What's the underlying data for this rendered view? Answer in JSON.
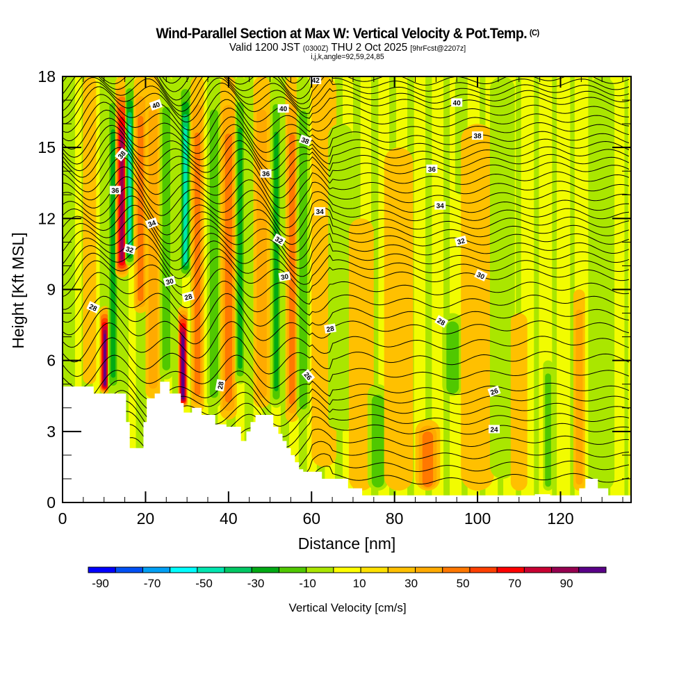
{
  "header": {
    "title": "Wind-Parallel Section at Max W: Vertical Velocity & Pot.Temp.",
    "copyright": "(C)",
    "valid_prefix": "Valid 1200 JST",
    "valid_utc": "(0300Z)",
    "valid_date": "THU 2 Oct 2025",
    "forecast": "[9hrFcst@2207z]",
    "indices": "i,j,k,angle=92,59,24,85"
  },
  "chart_data": {
    "type": "heatmap",
    "title": "Wind-Parallel Section at Max W: Vertical Velocity & Pot.Temp.",
    "xlabel": "Distance [nm]",
    "ylabel": "Height [Kft MSL]",
    "xlim": [
      0,
      137
    ],
    "ylim": [
      0,
      18
    ],
    "x_ticks": [
      "0",
      "20",
      "40",
      "60",
      "80",
      "100",
      "120"
    ],
    "x_tick_values": [
      0,
      20,
      40,
      60,
      80,
      100,
      120
    ],
    "x_minor_step": 5,
    "y_ticks": [
      "0",
      "3",
      "6",
      "9",
      "12",
      "15",
      "18"
    ],
    "y_tick_values": [
      0,
      3,
      6,
      9,
      12,
      15,
      18
    ],
    "y_minor_step": 1,
    "colorbar": {
      "label": "Vertical Velocity [cm/s]",
      "tick_labels": [
        "-90",
        "-70",
        "-50",
        "-30",
        "-10",
        "10",
        "30",
        "50",
        "70",
        "90"
      ],
      "bounds": [
        -100,
        100
      ],
      "step": 10,
      "colors": [
        "#0000ff",
        "#0050f5",
        "#00a0f5",
        "#00ffff",
        "#00e6b0",
        "#00c864",
        "#00aa14",
        "#50c800",
        "#aae600",
        "#ffff00",
        "#ffe100",
        "#ffc000",
        "#ffaa00",
        "#ff7800",
        "#ff4000",
        "#ff0000",
        "#c80032",
        "#960050",
        "#5a0088"
      ],
      "neutral_low": "#aae600",
      "neutral_high": "#ffff00"
    },
    "w_features": [
      {
        "x": 6.5,
        "w": 1.6,
        "ytop": 18,
        "ybot": 5,
        "value": 15
      },
      {
        "x": 10.2,
        "w": 1.3,
        "ytop": 8.3,
        "ybot": 4.6,
        "value": 88
      },
      {
        "x": 12.2,
        "w": 1.3,
        "ytop": 18,
        "ybot": 4.6,
        "value": -30
      },
      {
        "x": 14.3,
        "w": 1.6,
        "ytop": 18,
        "ybot": 9.5,
        "value": 72
      },
      {
        "x": 16.2,
        "w": 1.1,
        "ytop": 18,
        "ybot": 10,
        "value": -55
      },
      {
        "x": 18.8,
        "w": 1.6,
        "ytop": 18,
        "ybot": 8,
        "value": 35
      },
      {
        "x": 21.8,
        "w": 1.8,
        "ytop": 18,
        "ybot": 4.4,
        "value": 25
      },
      {
        "x": 25.0,
        "w": 1.6,
        "ytop": 18,
        "ybot": 5.2,
        "value": -25
      },
      {
        "x": 29.0,
        "w": 1.2,
        "ytop": 8.3,
        "ybot": 4.0,
        "value": 90
      },
      {
        "x": 29.6,
        "w": 1.3,
        "ytop": 18,
        "ybot": 9.5,
        "value": -55
      },
      {
        "x": 32.5,
        "w": 1.6,
        "ytop": 18,
        "ybot": 3.8,
        "value": 30
      },
      {
        "x": 36.5,
        "w": 1.7,
        "ytop": 18,
        "ybot": 4.0,
        "value": -25
      },
      {
        "x": 40.0,
        "w": 2.0,
        "ytop": 18,
        "ybot": 3.5,
        "value": 35
      },
      {
        "x": 42.8,
        "w": 1.2,
        "ytop": 18,
        "ybot": 5.0,
        "value": -30
      },
      {
        "x": 48.0,
        "w": 2.0,
        "ytop": 18,
        "ybot": 4.0,
        "value": 25
      },
      {
        "x": 51.5,
        "w": 1.2,
        "ytop": 18,
        "ybot": 4.0,
        "value": -30
      },
      {
        "x": 55.3,
        "w": 1.6,
        "ytop": 18,
        "ybot": 3.4,
        "value": 35
      },
      {
        "x": 58.0,
        "w": 1.6,
        "ytop": 18,
        "ybot": 3.5,
        "value": -25
      },
      {
        "x": 63.0,
        "w": 3.0,
        "ytop": 18,
        "ybot": 1.5,
        "value": 15
      },
      {
        "x": 67.0,
        "w": 3.0,
        "ytop": 16,
        "ybot": 3.0,
        "value": -12
      },
      {
        "x": 72.0,
        "w": 3.0,
        "ytop": 12,
        "ybot": 0.5,
        "value": 12
      },
      {
        "x": 76.0,
        "w": 2.5,
        "ytop": 5,
        "ybot": 0.5,
        "value": -22
      },
      {
        "x": 81.0,
        "w": 3.5,
        "ytop": 15,
        "ybot": 0.5,
        "value": 14
      },
      {
        "x": 88.0,
        "w": 3.0,
        "ytop": 3.5,
        "ybot": 0.5,
        "value": 35
      },
      {
        "x": 94.0,
        "w": 2.5,
        "ytop": 8,
        "ybot": 4.5,
        "value": -25
      },
      {
        "x": 96.0,
        "w": 1.4,
        "ytop": 18,
        "ybot": 13,
        "value": -15
      },
      {
        "x": 100.0,
        "w": 4.0,
        "ytop": 16,
        "ybot": 0.5,
        "value": 12
      },
      {
        "x": 106.0,
        "w": 3.0,
        "ytop": 18,
        "ybot": 1,
        "value": -10
      },
      {
        "x": 110.0,
        "w": 2.0,
        "ytop": 8,
        "ybot": 0.5,
        "value": 14
      },
      {
        "x": 117.0,
        "w": 1.2,
        "ytop": 6,
        "ybot": 0.5,
        "value": -22
      },
      {
        "x": 124.5,
        "w": 1.4,
        "ytop": 9,
        "ybot": 0.5,
        "value": 20
      },
      {
        "x": 130.0,
        "w": 3.0,
        "ytop": 18,
        "ybot": 0.5,
        "value": -12
      }
    ],
    "terrain": [
      [
        0,
        4.9
      ],
      [
        7.5,
        4.9
      ],
      [
        7.5,
        4.6
      ],
      [
        15.3,
        4.6
      ],
      [
        15.3,
        3.4
      ],
      [
        16.2,
        3.4
      ],
      [
        16.2,
        2.3
      ],
      [
        19.5,
        2.3
      ],
      [
        19.5,
        3.4
      ],
      [
        20.3,
        3.4
      ],
      [
        20.3,
        4.4
      ],
      [
        22.2,
        4.4
      ],
      [
        22.2,
        4.6
      ],
      [
        23.5,
        4.6
      ],
      [
        23.5,
        5.1
      ],
      [
        25.8,
        5.1
      ],
      [
        25.8,
        4.6
      ],
      [
        28.5,
        4.6
      ],
      [
        28.5,
        4.2
      ],
      [
        29.2,
        4.2
      ],
      [
        29.2,
        3.8
      ],
      [
        31.2,
        3.8
      ],
      [
        31.2,
        4.0
      ],
      [
        33.5,
        4.0
      ],
      [
        33.5,
        3.7
      ],
      [
        36.8,
        3.7
      ],
      [
        36.8,
        3.3
      ],
      [
        39.5,
        3.3
      ],
      [
        39.5,
        3.2
      ],
      [
        43.0,
        3.2
      ],
      [
        43.0,
        2.6
      ],
      [
        44.3,
        2.6
      ],
      [
        44.3,
        3.0
      ],
      [
        45.3,
        3.0
      ],
      [
        45.3,
        3.4
      ],
      [
        46.5,
        3.4
      ],
      [
        46.5,
        3.7
      ],
      [
        50.8,
        3.7
      ],
      [
        50.8,
        3.2
      ],
      [
        52.0,
        3.2
      ],
      [
        52.0,
        2.9
      ],
      [
        53.0,
        2.9
      ],
      [
        53.0,
        2.6
      ],
      [
        54.0,
        2.6
      ],
      [
        54.0,
        2.3
      ],
      [
        55.0,
        2.3
      ],
      [
        55.0,
        2.0
      ],
      [
        56.0,
        2.0
      ],
      [
        56.0,
        1.7
      ],
      [
        57.0,
        1.7
      ],
      [
        57.0,
        1.4
      ],
      [
        58.0,
        1.4
      ],
      [
        58.0,
        1.3
      ],
      [
        62.5,
        1.3
      ],
      [
        62.5,
        1.0
      ],
      [
        68.8,
        1.0
      ],
      [
        68.8,
        0.6
      ],
      [
        72.2,
        0.6
      ],
      [
        72.2,
        0.3
      ],
      [
        113.8,
        0.3
      ],
      [
        113.8,
        0.35
      ],
      [
        117.5,
        0.35
      ],
      [
        117.5,
        0.3
      ],
      [
        123.0,
        0.3
      ],
      [
        123.0,
        0.3
      ],
      [
        124.5,
        0.3
      ],
      [
        124.5,
        0.6
      ],
      [
        126.0,
        0.6
      ],
      [
        126.0,
        1.0
      ],
      [
        129.0,
        1.0
      ],
      [
        129.0,
        0.6
      ],
      [
        131.5,
        0.6
      ],
      [
        131.5,
        0.3
      ],
      [
        137,
        0.3
      ],
      [
        137,
        0
      ]
    ],
    "theta_contours": {
      "name": "Pot.Temp.",
      "levels": [
        24,
        26,
        28,
        30,
        32,
        34,
        36,
        38,
        40,
        42
      ],
      "labels": [
        {
          "text": "42",
          "x": 61.0,
          "y": 17.85,
          "angle": 0
        },
        {
          "text": "40",
          "x": 22.5,
          "y": 16.8,
          "angle": -20
        },
        {
          "text": "40",
          "x": 53.2,
          "y": 16.65,
          "angle": 0
        },
        {
          "text": "40",
          "x": 95.0,
          "y": 16.9,
          "angle": 0
        },
        {
          "text": "38",
          "x": 14.2,
          "y": 14.7,
          "angle": -50
        },
        {
          "text": "38",
          "x": 58.5,
          "y": 15.3,
          "angle": 20
        },
        {
          "text": "38",
          "x": 100.0,
          "y": 15.5,
          "angle": 0
        },
        {
          "text": "36",
          "x": 12.7,
          "y": 13.2,
          "angle": 0
        },
        {
          "text": "36",
          "x": 49.0,
          "y": 13.9,
          "angle": 0
        },
        {
          "text": "36",
          "x": 89.0,
          "y": 14.1,
          "angle": 0
        },
        {
          "text": "34",
          "x": 21.5,
          "y": 11.8,
          "angle": -20
        },
        {
          "text": "34",
          "x": 62.0,
          "y": 12.3,
          "angle": 0
        },
        {
          "text": "34",
          "x": 91.0,
          "y": 12.55,
          "angle": 0
        },
        {
          "text": "32",
          "x": 16.2,
          "y": 10.7,
          "angle": 15
        },
        {
          "text": "32",
          "x": 52.2,
          "y": 11.1,
          "angle": 30
        },
        {
          "text": "32",
          "x": 96.0,
          "y": 11.05,
          "angle": -15
        },
        {
          "text": "30",
          "x": 25.8,
          "y": 9.35,
          "angle": -15
        },
        {
          "text": "30",
          "x": 53.5,
          "y": 9.55,
          "angle": -10
        },
        {
          "text": "30",
          "x": 100.8,
          "y": 9.6,
          "angle": 25
        },
        {
          "text": "28",
          "x": 7.4,
          "y": 8.25,
          "angle": 25
        },
        {
          "text": "28",
          "x": 30.3,
          "y": 8.7,
          "angle": -15
        },
        {
          "text": "28",
          "x": 64.5,
          "y": 7.35,
          "angle": -10
        },
        {
          "text": "28",
          "x": 91.3,
          "y": 7.65,
          "angle": 30
        },
        {
          "text": "28",
          "x": 38.0,
          "y": 4.95,
          "angle": -80
        },
        {
          "text": "26",
          "x": 59.2,
          "y": 5.35,
          "angle": 50
        },
        {
          "text": "26",
          "x": 104.0,
          "y": 4.7,
          "angle": -20
        },
        {
          "text": "24",
          "x": 104.0,
          "y": 3.1,
          "angle": 0
        }
      ]
    }
  }
}
